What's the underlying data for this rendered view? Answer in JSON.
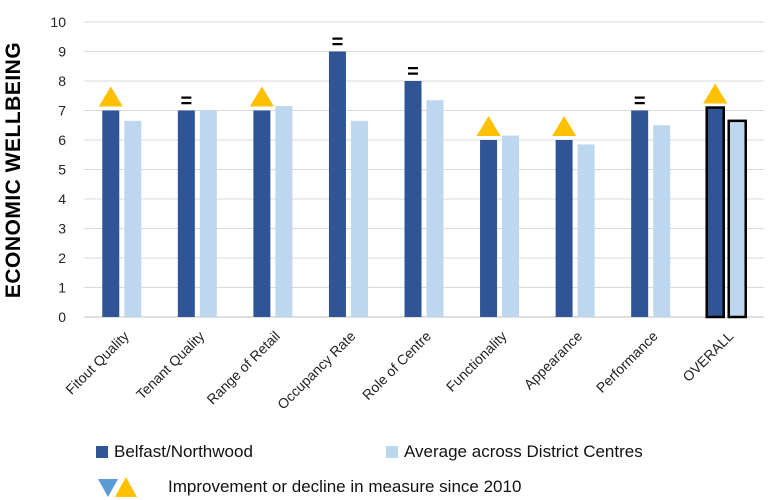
{
  "chart_data": {
    "type": "bar",
    "ylabel": "ECONOMIC WELLBEING",
    "ylim": [
      0,
      10
    ],
    "yticks": [
      "0",
      "1",
      "2",
      "3",
      "4",
      "5",
      "6",
      "7",
      "8",
      "9",
      "10"
    ],
    "grid": true,
    "categories": [
      "Fitout Quality",
      "Tenant Quality",
      "Range of Retail",
      "Occupancy Rate",
      "Role of Centre",
      "Functionality",
      "Appearance",
      "Performance",
      "OVERALL"
    ],
    "series": [
      {
        "name": "Belfast/Northwood",
        "values": [
          7,
          7,
          7,
          9,
          8,
          6,
          6,
          7,
          7.1
        ]
      },
      {
        "name": "Average across District Centres",
        "values": [
          6.65,
          7,
          7.15,
          6.65,
          7.35,
          6.15,
          5.85,
          6.5,
          6.65
        ]
      }
    ],
    "markers": [
      "up",
      "=",
      "up",
      "=",
      "=",
      "up",
      "up",
      "=",
      "up"
    ],
    "marker_text": "=",
    "colors": {
      "primary": "#2f5597",
      "secondary": "#bdd7ee",
      "improvement": "#ffc000",
      "decline": "#5b9bd5",
      "grid": "#d9d9d9"
    },
    "legend_note": "Improvement or decline in measure since 2010",
    "legend_position": "bottom"
  }
}
